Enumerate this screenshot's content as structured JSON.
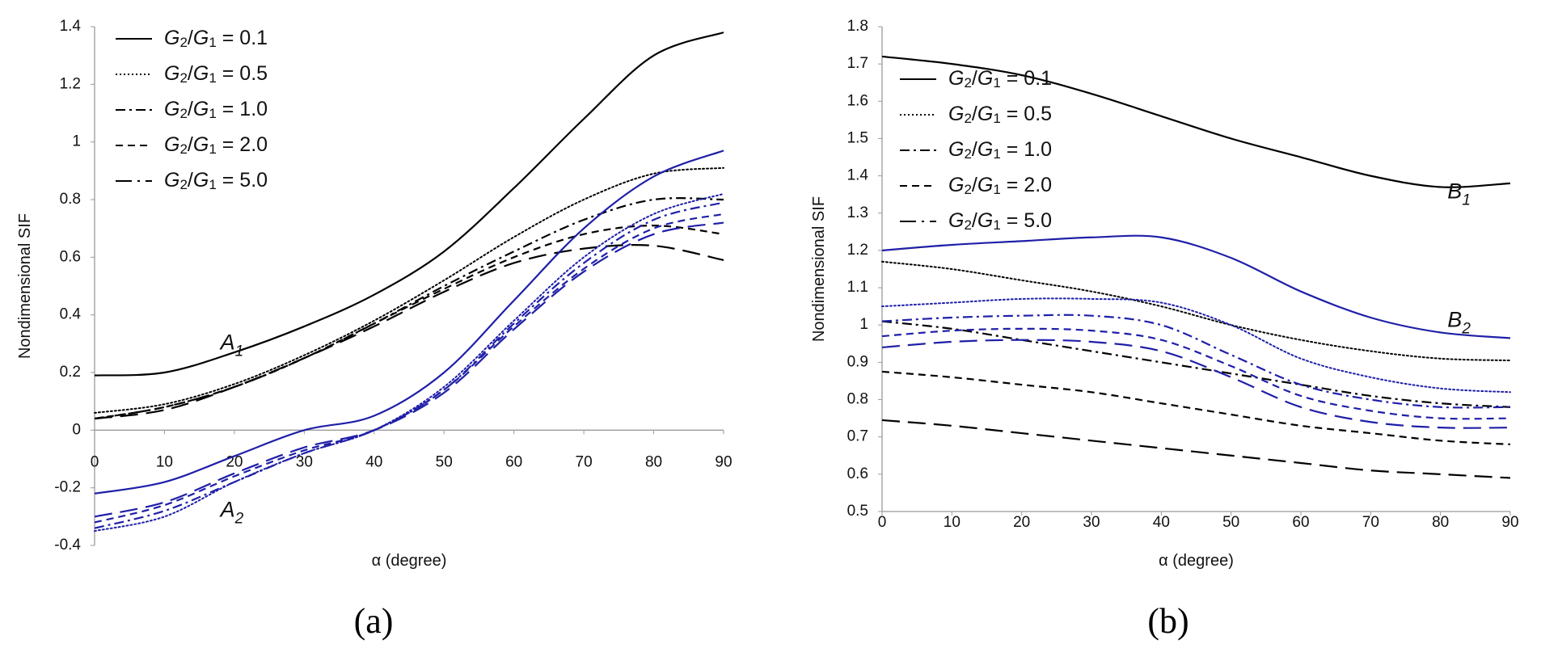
{
  "chart_data": [
    {
      "id": "a",
      "type": "line",
      "panel_label": "(a)",
      "xlabel": "α (degree)",
      "ylabel": "Nondimensional SIF",
      "xlim": [
        0,
        90
      ],
      "ylim": [
        -0.4,
        1.4
      ],
      "xticks": [
        0,
        10,
        20,
        30,
        40,
        50,
        60,
        70,
        80,
        90
      ],
      "yticks": [
        -0.4,
        -0.2,
        0,
        0.2,
        0.4,
        0.6,
        0.8,
        1,
        1.2,
        1.4
      ],
      "ytick_labels": [
        "-0.4",
        "-0.2",
        "0",
        "0.2",
        "0.4",
        "0.6",
        "0.8",
        "1",
        "1.2",
        "1.4"
      ],
      "legend_position": "top-left",
      "legend": [
        {
          "label": "G2/G1 = 0.1",
          "style": "solid"
        },
        {
          "label": "G2/G1 = 0.5",
          "style": "dotted"
        },
        {
          "label": "G2/G1 = 1.0",
          "style": "dashdot"
        },
        {
          "label": "G2/G1 = 2.0",
          "style": "dashed"
        },
        {
          "label": "G2/G1 = 5.0",
          "style": "longdashdot"
        }
      ],
      "annotations": [
        {
          "label": "A1",
          "x": 18,
          "y": 0.28
        },
        {
          "label": "A2",
          "x": 18,
          "y": -0.3
        }
      ],
      "x": [
        0,
        10,
        20,
        30,
        40,
        50,
        60,
        70,
        80,
        90
      ],
      "series": [
        {
          "name": "A1, G2/G1 = 0.1",
          "color": "#000000",
          "style": "solid",
          "values": [
            0.19,
            0.2,
            0.27,
            0.36,
            0.47,
            0.62,
            0.84,
            1.08,
            1.3,
            1.38
          ]
        },
        {
          "name": "A1, G2/G1 = 0.5",
          "color": "#000000",
          "style": "dotted",
          "values": [
            0.06,
            0.09,
            0.16,
            0.26,
            0.38,
            0.52,
            0.67,
            0.8,
            0.89,
            0.91
          ]
        },
        {
          "name": "A1, G2/G1 = 1.0",
          "color": "#000000",
          "style": "dashdot",
          "values": [
            0.04,
            0.08,
            0.15,
            0.25,
            0.37,
            0.5,
            0.62,
            0.73,
            0.8,
            0.8
          ]
        },
        {
          "name": "A1, G2/G1 = 2.0",
          "color": "#000000",
          "style": "dashed",
          "values": [
            0.04,
            0.08,
            0.15,
            0.25,
            0.37,
            0.49,
            0.6,
            0.68,
            0.71,
            0.68
          ]
        },
        {
          "name": "A1, G2/G1 = 5.0",
          "color": "#000000",
          "style": "longdash",
          "values": [
            0.04,
            0.07,
            0.15,
            0.25,
            0.36,
            0.48,
            0.58,
            0.63,
            0.64,
            0.59
          ]
        },
        {
          "name": "A2, G2/G1 = 0.1",
          "color": "#1f1fa8",
          "style": "solid",
          "values": [
            -0.22,
            -0.18,
            -0.09,
            0.0,
            0.05,
            0.2,
            0.45,
            0.7,
            0.88,
            0.97
          ]
        },
        {
          "name": "A2, G2/G1 = 0.5",
          "color": "#1f1fa8",
          "style": "dotted",
          "values": [
            -0.35,
            -0.3,
            -0.18,
            -0.08,
            0.0,
            0.15,
            0.38,
            0.6,
            0.75,
            0.82
          ]
        },
        {
          "name": "A2, G2/G1 = 1.0",
          "color": "#1f1fa8",
          "style": "dashdot",
          "values": [
            -0.34,
            -0.28,
            -0.18,
            -0.08,
            0.0,
            0.14,
            0.37,
            0.58,
            0.73,
            0.79
          ]
        },
        {
          "name": "A2, G2/G1 = 2.0",
          "color": "#1f1fa8",
          "style": "dashed",
          "values": [
            -0.32,
            -0.26,
            -0.16,
            -0.07,
            0.0,
            0.14,
            0.36,
            0.56,
            0.7,
            0.75
          ]
        },
        {
          "name": "A2, G2/G1 = 5.0",
          "color": "#1f1fa8",
          "style": "longdash",
          "values": [
            -0.3,
            -0.25,
            -0.15,
            -0.06,
            0.0,
            0.13,
            0.35,
            0.55,
            0.68,
            0.72
          ]
        }
      ]
    },
    {
      "id": "b",
      "type": "line",
      "panel_label": "(b)",
      "xlabel": "α (degree)",
      "ylabel": "Nondimensional SIF",
      "xlim": [
        0,
        90
      ],
      "ylim": [
        0.5,
        1.8
      ],
      "xticks": [
        0,
        10,
        20,
        30,
        40,
        50,
        60,
        70,
        80,
        90
      ],
      "yticks": [
        0.5,
        0.6,
        0.7,
        0.8,
        0.9,
        1,
        1.1,
        1.2,
        1.3,
        1.4,
        1.5,
        1.6,
        1.7,
        1.8
      ],
      "ytick_labels": [
        "0.5",
        "0.6",
        "0.7",
        "0.8",
        "0.9",
        "1",
        "1.1",
        "1.2",
        "1.3",
        "1.4",
        "1.5",
        "1.6",
        "1.7",
        "1.8"
      ],
      "legend_position": "top-left",
      "legend": [
        {
          "label": "G2/G1 = 0.1",
          "style": "solid"
        },
        {
          "label": "G2/G1 = 0.5",
          "style": "dotted"
        },
        {
          "label": "G2/G1 = 1.0",
          "style": "dashdot"
        },
        {
          "label": "G2/G1 = 2.0",
          "style": "dashed"
        },
        {
          "label": "G2/G1 = 5.0",
          "style": "longdashdot"
        }
      ],
      "annotations": [
        {
          "label": "B1",
          "x": 81,
          "y": 1.34
        },
        {
          "label": "B2",
          "x": 81,
          "y": 0.995
        }
      ],
      "x": [
        0,
        10,
        20,
        30,
        40,
        50,
        60,
        70,
        80,
        90
      ],
      "series": [
        {
          "name": "B1, G2/G1 = 0.1",
          "color": "#000000",
          "style": "solid",
          "values": [
            1.72,
            1.7,
            1.67,
            1.62,
            1.56,
            1.5,
            1.45,
            1.4,
            1.37,
            1.38
          ]
        },
        {
          "name": "B1, G2/G1 = 0.5",
          "color": "#000000",
          "style": "dotted",
          "values": [
            1.17,
            1.15,
            1.12,
            1.09,
            1.05,
            1.0,
            0.96,
            0.93,
            0.91,
            0.905
          ]
        },
        {
          "name": "B1, G2/G1 = 1.0",
          "color": "#000000",
          "style": "dashdot",
          "values": [
            1.01,
            0.99,
            0.96,
            0.93,
            0.9,
            0.87,
            0.84,
            0.81,
            0.79,
            0.78
          ]
        },
        {
          "name": "B1, G2/G1 = 2.0",
          "color": "#000000",
          "style": "dashed",
          "values": [
            0.875,
            0.86,
            0.84,
            0.82,
            0.79,
            0.76,
            0.73,
            0.71,
            0.69,
            0.68
          ]
        },
        {
          "name": "B1, G2/G1 = 5.0",
          "color": "#000000",
          "style": "longdash",
          "values": [
            0.745,
            0.73,
            0.71,
            0.69,
            0.67,
            0.65,
            0.63,
            0.61,
            0.6,
            0.59
          ]
        },
        {
          "name": "B2, G2/G1 = 0.1",
          "color": "#1f1fa8",
          "style": "solid",
          "values": [
            1.2,
            1.215,
            1.225,
            1.235,
            1.235,
            1.18,
            1.09,
            1.02,
            0.98,
            0.965
          ]
        },
        {
          "name": "B2, G2/G1 = 0.5",
          "color": "#1f1fa8",
          "style": "dotted",
          "values": [
            1.05,
            1.06,
            1.07,
            1.07,
            1.06,
            1.0,
            0.91,
            0.86,
            0.83,
            0.82
          ]
        },
        {
          "name": "B2, G2/G1 = 1.0",
          "color": "#1f1fa8",
          "style": "dashdot",
          "values": [
            1.01,
            1.02,
            1.025,
            1.025,
            1.0,
            0.92,
            0.84,
            0.8,
            0.78,
            0.78
          ]
        },
        {
          "name": "B2, G2/G1 = 2.0",
          "color": "#1f1fa8",
          "style": "dashed",
          "values": [
            0.97,
            0.985,
            0.99,
            0.985,
            0.96,
            0.89,
            0.81,
            0.77,
            0.75,
            0.75
          ]
        },
        {
          "name": "B2, G2/G1 = 5.0",
          "color": "#1f1fa8",
          "style": "longdash",
          "values": [
            0.94,
            0.955,
            0.96,
            0.955,
            0.93,
            0.86,
            0.78,
            0.74,
            0.725,
            0.725
          ]
        }
      ]
    }
  ]
}
